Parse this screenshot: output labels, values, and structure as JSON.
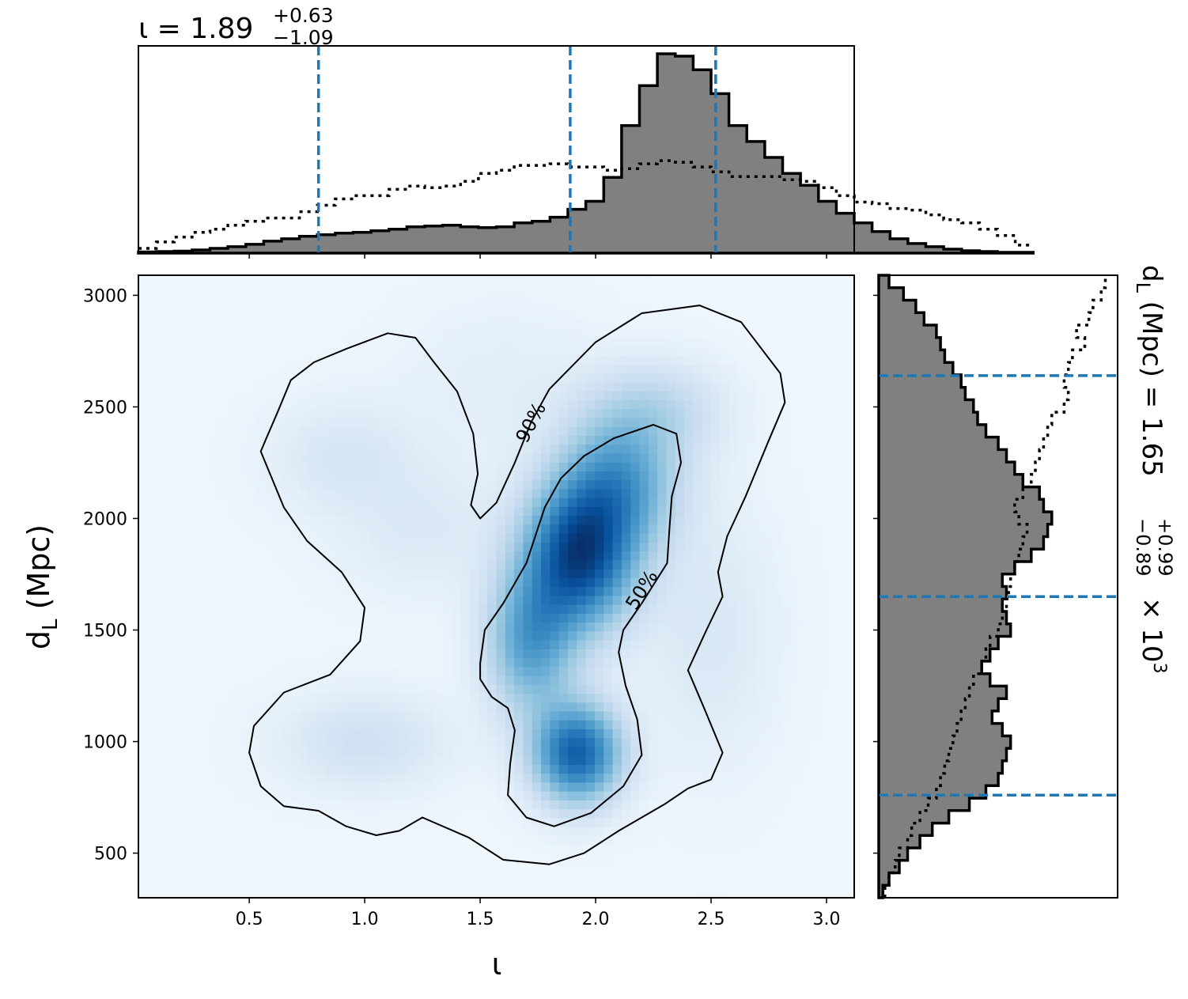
{
  "chart_data": {
    "type": "heatmap",
    "subtype": "corner-plot",
    "colormap": "Blues",
    "grid": false,
    "x_parameter": {
      "symbol": "ι",
      "xlim": [
        0.02,
        3.12
      ],
      "ticks": [
        0.5,
        1.0,
        1.5,
        2.0,
        2.5,
        3.0
      ],
      "tick_labels": [
        "0.5",
        "1.0",
        "1.5",
        "2.0",
        "2.5",
        "3.0"
      ],
      "xlabel": "ι"
    },
    "y_parameter": {
      "ylim": [
        300,
        3090
      ],
      "ticks": [
        500,
        1000,
        1500,
        2000,
        2500,
        3000
      ],
      "tick_labels": [
        "500",
        "1000",
        "1500",
        "2000",
        "2500",
        "3000"
      ],
      "ylabel_main": "d",
      "ylabel_sub": "L",
      "ylabel_unit": " (Mpc)"
    },
    "top_title": {
      "symbol": "ι",
      "equals": " = ",
      "median": "1.89",
      "upper": "+0.63",
      "lower": "−1.09"
    },
    "side_title": {
      "symbol": "d",
      "sub": "L",
      "unit": " (Mpc) = ",
      "median": "1.65",
      "upper": "+0.99",
      "lower": "−0.89",
      "times": " × 10",
      "exponent": "3"
    },
    "marginal_x": {
      "bin_edges_start": 0.02,
      "bin_width": 0.0775,
      "posterior_counts": [
        1.5,
        2,
        2.5,
        4,
        6,
        8,
        11,
        15,
        18,
        21,
        23,
        25,
        26,
        28,
        30,
        33,
        34,
        35,
        33,
        32,
        33,
        38,
        40,
        45,
        55,
        65,
        95,
        160,
        210,
        250,
        247,
        230,
        200,
        160,
        140,
        120,
        100,
        85,
        65,
        50,
        38,
        27,
        18,
        12,
        8,
        5,
        3,
        2,
        1,
        1
      ],
      "prior_counts": [
        6,
        14,
        20,
        26,
        30,
        35,
        40,
        44,
        44,
        52,
        60,
        68,
        72,
        72,
        80,
        84,
        82,
        84,
        90,
        100,
        104,
        110,
        110,
        112,
        108,
        108,
        104,
        106,
        112,
        116,
        114,
        108,
        102,
        96,
        96,
        96,
        92,
        90,
        82,
        72,
        64,
        62,
        56,
        54,
        48,
        42,
        38,
        30,
        22,
        10
      ],
      "quantile_lines": [
        0.8,
        1.89,
        2.52
      ],
      "quantile_color": "#1f77b4",
      "fill_color": "#808080"
    },
    "marginal_y": {
      "bin_edges_start": 300,
      "bin_width": 55.8,
      "posterior_counts": [
        2,
        5,
        10,
        14,
        20,
        26,
        34,
        44,
        52,
        58,
        60,
        62,
        64,
        60,
        55,
        58,
        62,
        54,
        50,
        54,
        58,
        64,
        62,
        60,
        62,
        60,
        66,
        74,
        80,
        82,
        84,
        80,
        78,
        70,
        66,
        62,
        58,
        52,
        48,
        46,
        42,
        40,
        36,
        32,
        30,
        28,
        22,
        18,
        12,
        5
      ],
      "prior_counts": [
        3,
        5,
        8,
        10,
        14,
        16,
        20,
        24,
        28,
        30,
        32,
        34,
        36,
        38,
        40,
        42,
        44,
        46,
        50,
        52,
        54,
        58,
        60,
        62,
        63,
        64,
        66,
        68,
        70,
        72,
        68,
        66,
        70,
        74,
        76,
        78,
        80,
        82,
        84,
        90,
        92,
        90,
        92,
        94,
        100,
        96,
        102,
        104,
        108,
        110
      ],
      "quantile_lines": [
        760,
        1650,
        2640
      ],
      "quantile_color": "#1f77b4",
      "fill_color": "#808080"
    },
    "density_components": [
      {
        "x": 1.93,
        "y": 1830,
        "sx": 0.16,
        "sy": 220,
        "w": 1.0
      },
      {
        "x": 1.92,
        "y": 950,
        "sx": 0.13,
        "sy": 150,
        "w": 0.88
      },
      {
        "x": 2.1,
        "y": 2150,
        "sx": 0.17,
        "sy": 200,
        "w": 0.55
      },
      {
        "x": 1.72,
        "y": 1450,
        "sx": 0.13,
        "sy": 220,
        "w": 0.55
      },
      {
        "x": 2.25,
        "y": 2480,
        "sx": 0.2,
        "sy": 150,
        "w": 0.22
      },
      {
        "x": 1.0,
        "y": 1000,
        "sx": 0.25,
        "sy": 150,
        "w": 0.14
      },
      {
        "x": 0.9,
        "y": 2280,
        "sx": 0.22,
        "sy": 170,
        "w": 0.1
      },
      {
        "x": 1.25,
        "y": 1950,
        "sx": 0.25,
        "sy": 200,
        "w": 0.08
      },
      {
        "x": 2.5,
        "y": 1500,
        "sx": 0.2,
        "sy": 400,
        "w": 0.09
      },
      {
        "x": 1.6,
        "y": 2600,
        "sx": 0.3,
        "sy": 250,
        "w": 0.05
      }
    ],
    "contours": [
      {
        "label": "90%",
        "label_at": [
          1.72,
          2430
        ],
        "label_rotation": -62,
        "points": [
          [
            0.57,
            2350
          ],
          [
            0.62,
            2470
          ],
          [
            0.68,
            2620
          ],
          [
            0.78,
            2700
          ],
          [
            0.92,
            2760
          ],
          [
            1.1,
            2830
          ],
          [
            1.22,
            2810
          ],
          [
            1.3,
            2700
          ],
          [
            1.4,
            2570
          ],
          [
            1.47,
            2380
          ],
          [
            1.49,
            2200
          ],
          [
            1.46,
            2060
          ],
          [
            1.5,
            2000
          ],
          [
            1.57,
            2070
          ],
          [
            1.65,
            2250
          ],
          [
            1.72,
            2430
          ],
          [
            1.8,
            2580
          ],
          [
            2.0,
            2790
          ],
          [
            2.2,
            2920
          ],
          [
            2.45,
            2955
          ],
          [
            2.63,
            2880
          ],
          [
            2.8,
            2650
          ],
          [
            2.82,
            2520
          ],
          [
            2.75,
            2350
          ],
          [
            2.65,
            2100
          ],
          [
            2.57,
            1920
          ],
          [
            2.53,
            1760
          ],
          [
            2.55,
            1650
          ],
          [
            2.48,
            1500
          ],
          [
            2.4,
            1320
          ],
          [
            2.47,
            1150
          ],
          [
            2.55,
            950
          ],
          [
            2.5,
            830
          ],
          [
            2.4,
            790
          ],
          [
            2.3,
            720
          ],
          [
            2.1,
            600
          ],
          [
            1.95,
            500
          ],
          [
            1.8,
            450
          ],
          [
            1.6,
            470
          ],
          [
            1.45,
            570
          ],
          [
            1.25,
            660
          ],
          [
            1.15,
            600
          ],
          [
            1.05,
            580
          ],
          [
            0.92,
            620
          ],
          [
            0.8,
            690
          ],
          [
            0.65,
            710
          ],
          [
            0.55,
            800
          ],
          [
            0.5,
            950
          ],
          [
            0.52,
            1070
          ],
          [
            0.65,
            1220
          ],
          [
            0.85,
            1300
          ],
          [
            0.98,
            1450
          ],
          [
            1.0,
            1600
          ],
          [
            0.9,
            1760
          ],
          [
            0.75,
            1900
          ],
          [
            0.65,
            2050
          ],
          [
            0.55,
            2300
          ],
          [
            0.57,
            2350
          ]
        ]
      },
      {
        "label": "50%",
        "label_at": [
          2.2,
          1680
        ],
        "label_rotation": -58,
        "points": [
          [
            1.5,
            1350
          ],
          [
            1.52,
            1500
          ],
          [
            1.6,
            1620
          ],
          [
            1.7,
            1800
          ],
          [
            1.78,
            2050
          ],
          [
            1.85,
            2180
          ],
          [
            1.95,
            2280
          ],
          [
            2.08,
            2360
          ],
          [
            2.25,
            2420
          ],
          [
            2.35,
            2380
          ],
          [
            2.37,
            2250
          ],
          [
            2.33,
            2100
          ],
          [
            2.32,
            1960
          ],
          [
            2.31,
            1800
          ],
          [
            2.2,
            1620
          ],
          [
            2.12,
            1500
          ],
          [
            2.1,
            1400
          ],
          [
            2.13,
            1250
          ],
          [
            2.18,
            1100
          ],
          [
            2.2,
            940
          ],
          [
            2.12,
            800
          ],
          [
            1.98,
            680
          ],
          [
            1.82,
            620
          ],
          [
            1.7,
            660
          ],
          [
            1.62,
            760
          ],
          [
            1.63,
            900
          ],
          [
            1.65,
            1050
          ],
          [
            1.62,
            1150
          ],
          [
            1.55,
            1200
          ],
          [
            1.5,
            1280
          ],
          [
            1.5,
            1350
          ]
        ]
      }
    ]
  }
}
